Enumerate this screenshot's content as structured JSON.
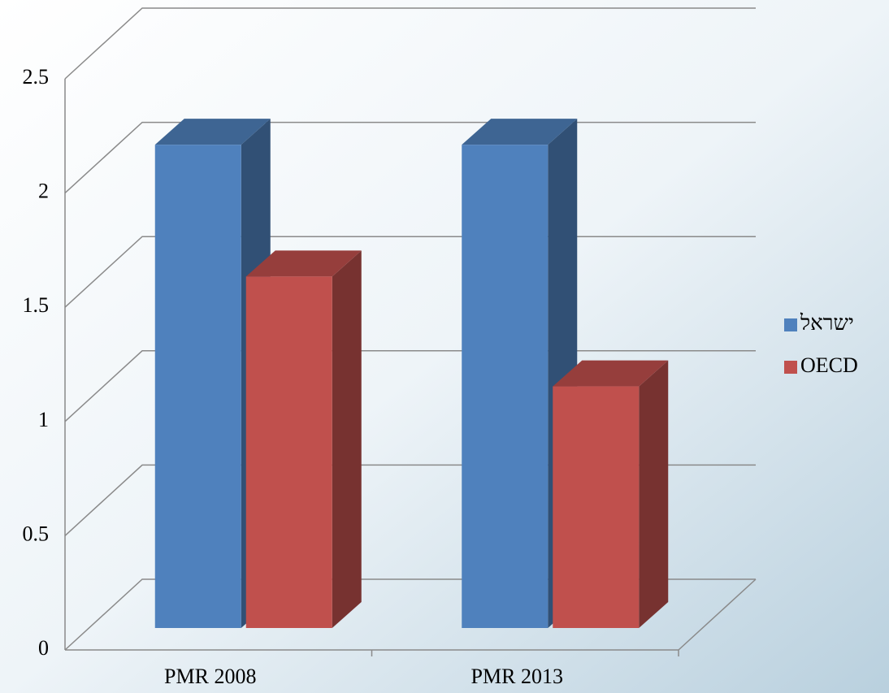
{
  "chart_data": {
    "type": "bar3d",
    "categories": [
      "PMR 2008",
      "PMR 2013"
    ],
    "series": [
      {
        "name": "ישראל",
        "color": "#4f81bd",
        "values": [
          2.2,
          2.2
        ]
      },
      {
        "name": "OECD",
        "color": "#c0504d",
        "values": [
          1.6,
          1.1
        ]
      }
    ],
    "ylim": [
      0,
      2.5
    ],
    "yticks": [
      0,
      0.5,
      1,
      1.5,
      2,
      2.5
    ],
    "grid": true,
    "legend": "right"
  }
}
